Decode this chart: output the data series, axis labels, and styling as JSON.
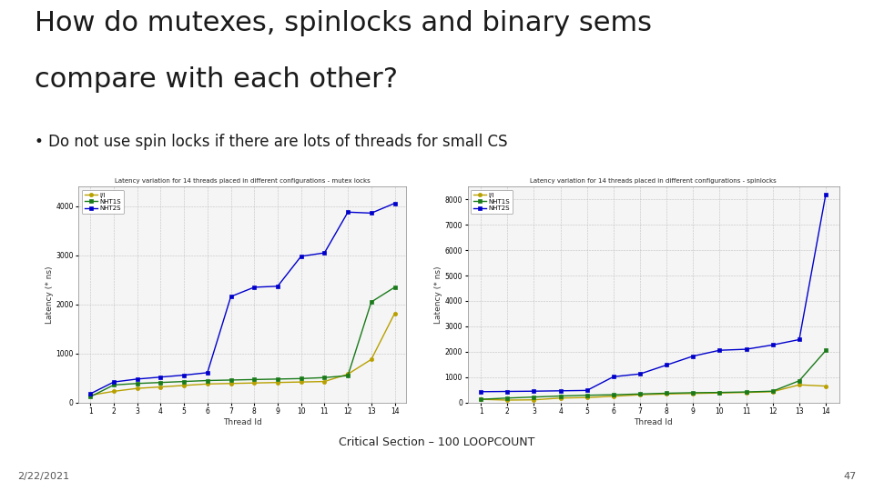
{
  "title_line1": "How do mutexes, spinlocks and binary sems",
  "title_line2": "compare with each other?",
  "bullet": "• Do not use spin locks if there are lots of threads for small CS",
  "caption": "Critical Section – 100 LOOPCOUNT",
  "date": "2/22/2021",
  "page": "47",
  "background_color": "#ffffff",
  "chart1": {
    "title": "Latency variation for 14 threads placed in different configurations - mutex locks",
    "xlabel": "Thread Id",
    "ylabel": "Latency (* ns)",
    "xlim": [
      0.5,
      14.5
    ],
    "ylim": [
      0,
      4400
    ],
    "yticks": [
      0,
      1000,
      2000,
      3000,
      4000
    ],
    "xticks": [
      1,
      2,
      3,
      4,
      5,
      6,
      7,
      8,
      9,
      10,
      11,
      12,
      13,
      14
    ],
    "legend": [
      "I/I",
      "NHT1S",
      "NHT2S"
    ],
    "colors": [
      "#b8a000",
      "#1a7a1a",
      "#0000cc"
    ],
    "series1": [
      150,
      230,
      290,
      320,
      350,
      380,
      390,
      400,
      410,
      420,
      430,
      580,
      880,
      1820
    ],
    "series2": [
      120,
      360,
      390,
      410,
      430,
      450,
      460,
      470,
      480,
      490,
      510,
      550,
      2050,
      2350
    ],
    "series3": [
      180,
      420,
      480,
      520,
      560,
      610,
      2160,
      2350,
      2370,
      2980,
      3050,
      3880,
      3860,
      4060
    ]
  },
  "chart2": {
    "title": "Latency variation for 14 threads placed in different configurations - spinlocks",
    "xlabel": "Thread Id",
    "ylabel": "Latency (* ns)",
    "xlim": [
      0.5,
      14.5
    ],
    "ylim": [
      0,
      8500
    ],
    "yticks": [
      0,
      1000,
      2000,
      3000,
      4000,
      5000,
      6000,
      7000,
      8000
    ],
    "xticks": [
      1,
      2,
      3,
      4,
      5,
      6,
      7,
      8,
      9,
      10,
      11,
      12,
      13,
      14
    ],
    "legend": [
      "I/I",
      "NHT1S",
      "NHT2S"
    ],
    "colors": [
      "#b8a000",
      "#1a7a1a",
      "#0000cc"
    ],
    "series1": [
      130,
      100,
      110,
      180,
      200,
      250,
      310,
      340,
      360,
      380,
      400,
      430,
      700,
      650
    ],
    "series2": [
      130,
      180,
      220,
      260,
      290,
      310,
      340,
      370,
      390,
      400,
      420,
      450,
      860,
      2050
    ],
    "series3": [
      430,
      440,
      450,
      465,
      480,
      1020,
      1130,
      1480,
      1830,
      2060,
      2100,
      2270,
      2480,
      8200
    ]
  }
}
